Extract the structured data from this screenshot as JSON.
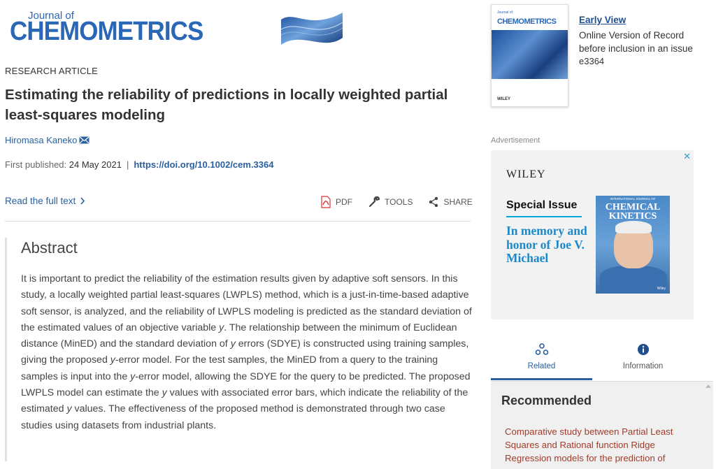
{
  "journal": {
    "small": "Journal of",
    "big": "CHEMOMETRICS"
  },
  "article": {
    "type": "RESEARCH ARTICLE",
    "title": "Estimating the reliability of predictions in locally weighted partial least-squares modeling",
    "author": "Hiromasa Kaneko",
    "first_published_label": "First published:",
    "first_published_date": "24 May 2021",
    "doi": "https://doi.org/10.1002/cem.3364",
    "read_full": "Read the full text"
  },
  "tools": {
    "pdf": "PDF",
    "tools": "TOOLS",
    "share": "SHARE"
  },
  "abstract": {
    "heading": "Abstract",
    "t1": "It is important to predict the reliability of the estimation results given by adaptive soft sensors. In this study, a locally weighted partial least-squares (LWPLS) method, which is a just-in-time-based adaptive soft sensor, is analyzed, and the reliability of LWPLS modeling is predicted as the standard deviation of the estimated values of an objective variable ",
    "t2": ". The relationship between the minimum of Euclidean distance (MinED) and the standard deviation of ",
    "t3": " errors (SDYE) is constructed using training samples, giving the proposed ",
    "t4": "-error model. For the test samples, the MinED from a query to the training samples is input into the ",
    "t5": "-error model, allowing the SDYE for the query to be predicted. The proposed LWPLS model can estimate the ",
    "t6": " values with associated error bars, which indicate the reliability of the estimated ",
    "t7": " values. The effectiveness of the proposed method is demonstrated through two case studies using datasets from industrial plants.",
    "var": "y"
  },
  "cover": {
    "title": "CHEMOMETRICS",
    "sub": "Journal of",
    "publisher": "WILEY"
  },
  "early_view": {
    "link": "Early View",
    "text": "Online Version of Record before inclusion in an issue",
    "id": "e3364"
  },
  "ad": {
    "label": "Advertisement",
    "close": "✕",
    "brand": "WILEY",
    "special": "Special Issue",
    "memory": "In memory and honor of Joe V. Michael",
    "book_top": "INTERNATIONAL JOURNAL OF",
    "book_title": "CHEMICAL KINETICS",
    "book_publisher": "Wiley"
  },
  "tabs": {
    "related": "Related",
    "information": "Information"
  },
  "recommended": {
    "heading": "Recommended",
    "item": "Comparative study between Partial Least Squares and Rational function Ridge Regression models for the prediction of"
  }
}
